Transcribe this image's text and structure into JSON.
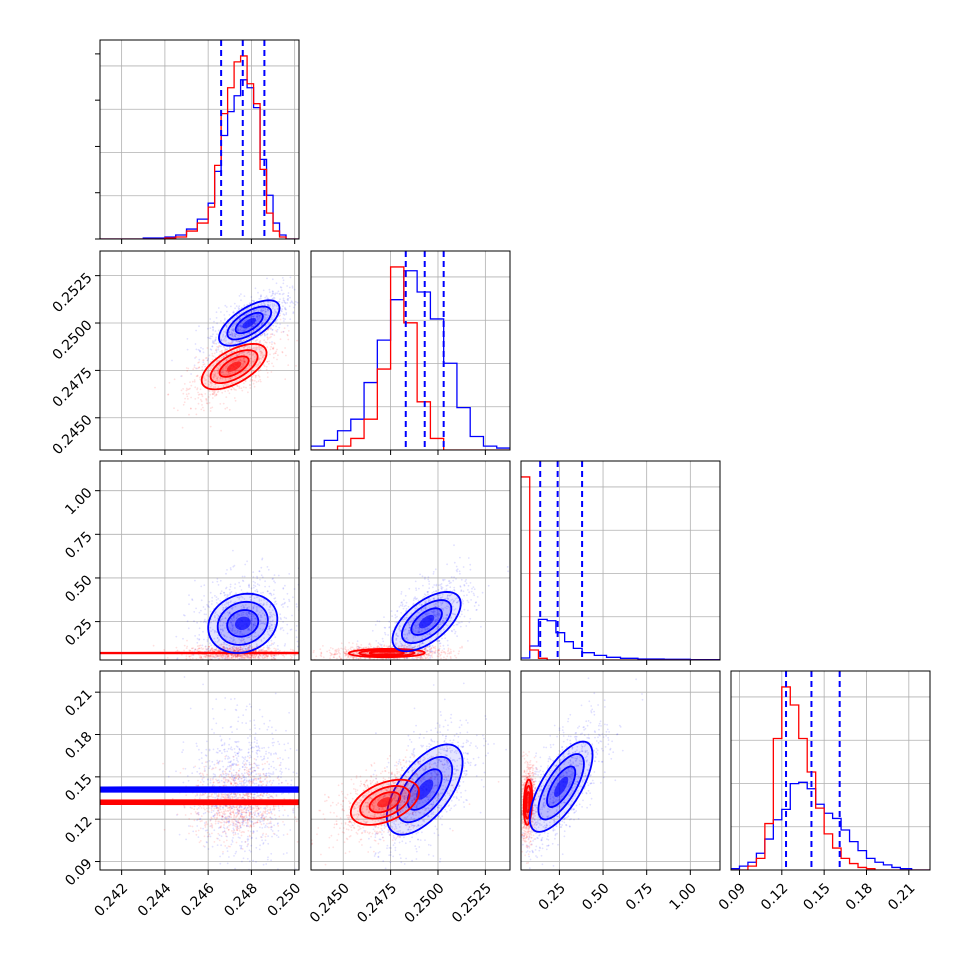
{
  "chart_data": {
    "type": "corner",
    "parameters": [
      "",
      "",
      "",
      ""
    ],
    "series": [
      {
        "color": "#0000ff",
        "name": ""
      },
      {
        "color": "#ff0000",
        "name": ""
      }
    ],
    "quantile_line_color": "#0000ff",
    "grid": true,
    "axes": {
      "p0": {
        "range": [
          0.241,
          0.2502
        ],
        "ticks": [
          0.242,
          0.244,
          0.246,
          0.248,
          0.25
        ],
        "tick_labels": [
          "0.242",
          "0.244",
          "0.246",
          "0.248",
          "0.250"
        ]
      },
      "p1": {
        "range": [
          0.2433,
          0.2538
        ],
        "ticks": [
          0.245,
          0.2475,
          0.25,
          0.2525
        ],
        "tick_labels": [
          "0.2450",
          "0.2475",
          "0.2500",
          "0.2525"
        ]
      },
      "p2": {
        "range": [
          0.03,
          1.17
        ],
        "ticks": [
          0.25,
          0.5,
          0.75,
          1.0
        ],
        "tick_labels": [
          "0.25",
          "0.50",
          "0.75",
          "1.00"
        ]
      },
      "p3": {
        "range": [
          0.084,
          0.225
        ],
        "ticks": [
          0.09,
          0.12,
          0.15,
          0.18,
          0.21
        ],
        "tick_labels": [
          "0.09",
          "0.12",
          "0.15",
          "0.18",
          "0.21"
        ]
      }
    },
    "diagonal": [
      {
        "param": "p0",
        "quantiles": [
          0.2466,
          0.2476,
          0.2486
        ],
        "bin_edges": [
          0.241,
          0.242,
          0.243,
          0.244,
          0.2445,
          0.245,
          0.2455,
          0.246,
          0.2463,
          0.2466,
          0.2469,
          0.2472,
          0.2475,
          0.2478,
          0.2481,
          0.2484,
          0.2487,
          0.249,
          0.2493,
          0.2496,
          0.25,
          0.2502
        ],
        "hist": [
          {
            "series": 0,
            "values": [
              0.0,
              0.0,
              0.005,
              0.01,
              0.02,
              0.05,
              0.1,
              0.18,
              0.34,
              0.52,
              0.64,
              0.72,
              0.8,
              0.76,
              0.66,
              0.4,
              0.22,
              0.08,
              0.02,
              0.0,
              0.0
            ]
          },
          {
            "series": 1,
            "values": [
              0.0,
              0.0,
              0.0,
              0.005,
              0.01,
              0.04,
              0.08,
              0.16,
              0.37,
              0.63,
              0.76,
              0.89,
              0.92,
              0.78,
              0.68,
              0.35,
              0.13,
              0.04,
              0.01,
              0.0,
              0.0
            ]
          }
        ]
      },
      {
        "param": "p1",
        "quantiles": [
          0.2483,
          0.2493,
          0.2503
        ],
        "bin_edges": [
          0.2433,
          0.244,
          0.2447,
          0.2454,
          0.2461,
          0.2468,
          0.2475,
          0.2482,
          0.2489,
          0.2496,
          0.2503,
          0.251,
          0.2517,
          0.2524,
          0.2531,
          0.2538
        ],
        "hist": [
          {
            "series": 0,
            "values": [
              0.02,
              0.05,
              0.1,
              0.16,
              0.35,
              0.57,
              0.78,
              0.93,
              0.82,
              0.68,
              0.45,
              0.22,
              0.07,
              0.02,
              0.01
            ]
          },
          {
            "series": 1,
            "values": [
              0.0,
              0.0,
              0.02,
              0.06,
              0.16,
              0.42,
              0.95,
              0.66,
              0.25,
              0.06,
              0.0,
              0.0,
              0.0,
              0.0,
              0.0
            ]
          }
        ]
      },
      {
        "param": "p2",
        "quantiles": [
          0.14,
          0.24,
          0.38
        ],
        "bin_edges": [
          0.03,
          0.08,
          0.13,
          0.18,
          0.23,
          0.28,
          0.33,
          0.38,
          0.45,
          0.52,
          0.6,
          0.7,
          0.85,
          1.0,
          1.17
        ],
        "hist": [
          {
            "series": 0,
            "values": [
              0.06,
              0.42,
              1.22,
              1.18,
              0.82,
              0.55,
              0.35,
              0.22,
              0.14,
              0.08,
              0.05,
              0.03,
              0.02,
              0.01
            ]
          },
          {
            "series": 1,
            "values": [
              5.5,
              0.3,
              0.05,
              0.0,
              0.0,
              0.0,
              0.0,
              0.0,
              0.0,
              0.0,
              0.0,
              0.0,
              0.0,
              0.0
            ]
          }
        ]
      },
      {
        "param": "p3",
        "quantiles": [
          0.123,
          0.141,
          0.161
        ],
        "bin_edges": [
          0.084,
          0.09,
          0.096,
          0.102,
          0.108,
          0.114,
          0.12,
          0.126,
          0.132,
          0.138,
          0.144,
          0.15,
          0.156,
          0.162,
          0.168,
          0.174,
          0.18,
          0.186,
          0.192,
          0.198,
          0.204,
          0.212,
          0.225
        ],
        "hist": [
          {
            "series": 0,
            "values": [
              0.01,
              0.03,
              0.06,
              0.13,
              0.24,
              0.39,
              0.47,
              0.67,
              0.68,
              0.63,
              0.51,
              0.44,
              0.4,
              0.31,
              0.22,
              0.15,
              0.09,
              0.06,
              0.04,
              0.02,
              0.01,
              0.0
            ]
          },
          {
            "series": 1,
            "values": [
              0.0,
              0.0,
              0.03,
              0.09,
              0.36,
              1.02,
              1.42,
              1.28,
              1.02,
              0.76,
              0.48,
              0.28,
              0.17,
              0.09,
              0.05,
              0.02,
              0.01,
              0.0,
              0.0,
              0.0,
              0.0,
              0.0
            ]
          }
        ]
      }
    ],
    "pairs": [
      {
        "x": "p0",
        "y": "p1",
        "dists": [
          {
            "series": 1,
            "center": [
              0.2472,
              0.2477
            ],
            "sd": [
              0.00075,
              0.0006
            ],
            "rho": 0.6,
            "cloud": [
              0.00105,
              0.00095
            ]
          },
          {
            "series": 0,
            "center": [
              0.2479,
              0.25
            ],
            "sd": [
              0.0007,
              0.0006
            ],
            "rho": 0.65,
            "cloud": [
              0.00095,
              0.00085
            ]
          }
        ]
      },
      {
        "x": "p0",
        "y": "p2",
        "dists": [
          {
            "series": 1,
            "center": [
              0.2472,
              0.07
            ],
            "sd": [
              0.00075,
              0.012
            ],
            "rho": 0.0,
            "cloud": [
              0.0011,
              0.02
            ]
          },
          {
            "series": 0,
            "center": [
              0.2476,
              0.24
            ],
            "sd": [
              0.0008,
              0.085
            ],
            "rho": 0.15,
            "cloud": [
              0.0011,
              0.13
            ]
          }
        ]
      },
      {
        "x": "p1",
        "y": "p2",
        "dists": [
          {
            "series": 1,
            "center": [
              0.2473,
              0.07
            ],
            "sd": [
              0.001,
              0.012
            ],
            "rho": 0.05,
            "cloud": [
              0.0016,
              0.02
            ]
          },
          {
            "series": 0,
            "center": [
              0.2494,
              0.25
            ],
            "sd": [
              0.0009,
              0.085
            ],
            "rho": 0.6,
            "cloud": [
              0.0012,
              0.13
            ]
          }
        ]
      },
      {
        "x": "p0",
        "y": "p3",
        "dists": [
          {
            "series": 0,
            "center": [
              0.2475,
              0.141
            ],
            "sd": [
              0.0008,
              0.016
            ],
            "rho": 0.0,
            "cloud": [
              0.0011,
              0.025
            ]
          },
          {
            "series": 1,
            "center": [
              0.2473,
              0.132
            ],
            "sd": [
              0.0007,
              0.008
            ],
            "rho": 0.0,
            "cloud": [
              0.001,
              0.013
            ]
          }
        ]
      },
      {
        "x": "p1",
        "y": "p3",
        "dists": [
          {
            "series": 0,
            "center": [
              0.2493,
              0.141
            ],
            "sd": [
              0.001,
              0.016
            ],
            "rho": 0.6,
            "cloud": [
              0.0013,
              0.024
            ]
          },
          {
            "series": 1,
            "center": [
              0.2472,
              0.132
            ],
            "sd": [
              0.0009,
              0.008
            ],
            "rho": 0.45,
            "cloud": [
              0.0014,
              0.013
            ]
          }
        ]
      },
      {
        "x": "p2",
        "y": "p3",
        "dists": [
          {
            "series": 1,
            "center": [
              0.07,
              0.132
            ],
            "sd": [
              0.012,
              0.008
            ],
            "rho": 0.2,
            "cloud": [
              0.02,
              0.013
            ]
          },
          {
            "series": 0,
            "center": [
              0.26,
              0.143
            ],
            "sd": [
              0.09,
              0.016
            ],
            "rho": 0.7,
            "cloud": [
              0.13,
              0.024
            ]
          }
        ]
      }
    ]
  }
}
